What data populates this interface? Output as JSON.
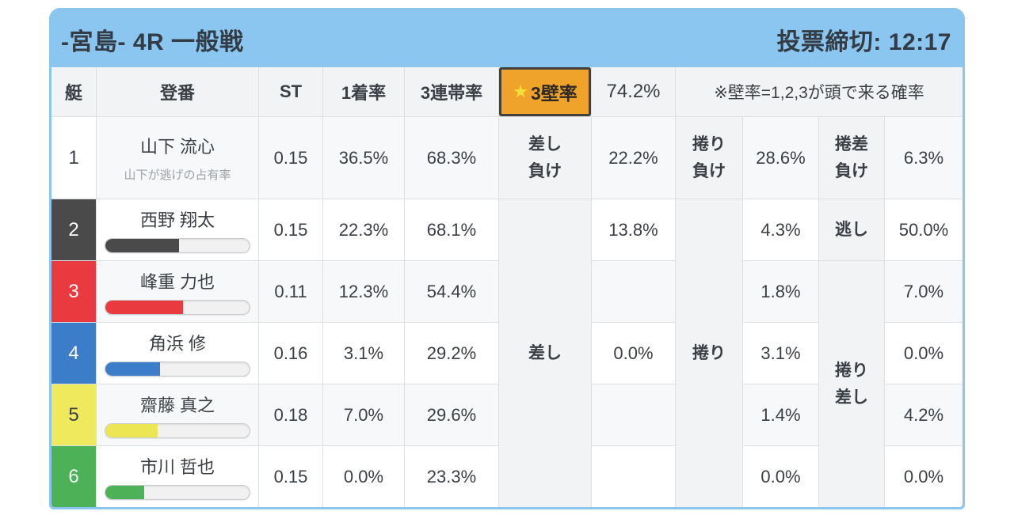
{
  "header": {
    "title": "-宮島- 4R 一般戦",
    "deadline": "投票締切: 12:17"
  },
  "columns": {
    "boat": "艇",
    "racer": "登番",
    "st": "ST",
    "win_rate": "1着率",
    "top3_rate": "3連帯率",
    "wall_star": "★",
    "wall_label": "3壁率",
    "wall_value": "74.2%",
    "note": "※壁率=1,2,3が頭で来る確率"
  },
  "colors": {
    "header_bar": "#8ac6ef",
    "wall_cell_bg": "#f0a32b",
    "wall_cell_border": "#42403c",
    "star_yellow": "#f7df3a"
  },
  "merged": {
    "sashi": "差し",
    "makuri": "捲り",
    "makurizashi_l1": "捲り",
    "makurizashi_l2": "差し"
  },
  "rows": [
    {
      "boat": "1",
      "boat_bg": "#ffffff",
      "boat_fg": "#3a3f45",
      "name": "山下 流心",
      "subtitle": "山下が逃げの占有率",
      "st": "0.15",
      "win1": "36.5%",
      "top3": "68.3%",
      "lbl1_l1": "差し",
      "lbl1_l2": "負け",
      "v1": "22.2%",
      "lbl2_l1": "捲り",
      "lbl2_l2": "負け",
      "v2": "28.6%",
      "lbl3_l1": "捲差",
      "lbl3_l2": "負け",
      "v3": "6.3%"
    },
    {
      "boat": "2",
      "boat_bg": "#4a4a4a",
      "boat_fg": "#ffffff",
      "name": "西野 翔太",
      "bar_pct": 51,
      "bar_color": "#4a4a4a",
      "st": "0.15",
      "win1": "22.3%",
      "top3": "68.1%",
      "v1": "13.8%",
      "v2": "4.3%",
      "lbl3": "逃し",
      "v3": "50.0%"
    },
    {
      "boat": "3",
      "boat_bg": "#e93a40",
      "boat_fg": "#ffffff",
      "name": "峰重 力也",
      "bar_pct": 54,
      "bar_color": "#e93a40",
      "st": "0.11",
      "win1": "12.3%",
      "top3": "54.4%",
      "v1": "",
      "v2": "1.8%",
      "v3": "7.0%"
    },
    {
      "boat": "4",
      "boat_bg": "#3c7dc9",
      "boat_fg": "#ffffff",
      "name": "角浜 修",
      "bar_pct": 38,
      "bar_color": "#3c7dc9",
      "st": "0.16",
      "win1": "3.1%",
      "top3": "29.2%",
      "v1": "0.0%",
      "v2": "3.1%",
      "v3": "0.0%"
    },
    {
      "boat": "5",
      "boat_bg": "#efe95e",
      "boat_fg": "#3a3f45",
      "name": "齋藤 真之",
      "bar_pct": 36,
      "bar_color": "#ece554",
      "st": "0.18",
      "win1": "7.0%",
      "top3": "29.6%",
      "v1": "",
      "v2": "1.4%",
      "v3": "4.2%"
    },
    {
      "boat": "6",
      "boat_bg": "#4db158",
      "boat_fg": "#f0f7f0",
      "name": "市川 哲也",
      "bar_pct": 27,
      "bar_color": "#4db158",
      "st": "0.15",
      "win1": "0.0%",
      "top3": "23.3%",
      "v1": "",
      "v2": "0.0%",
      "v3": "0.0%"
    }
  ]
}
